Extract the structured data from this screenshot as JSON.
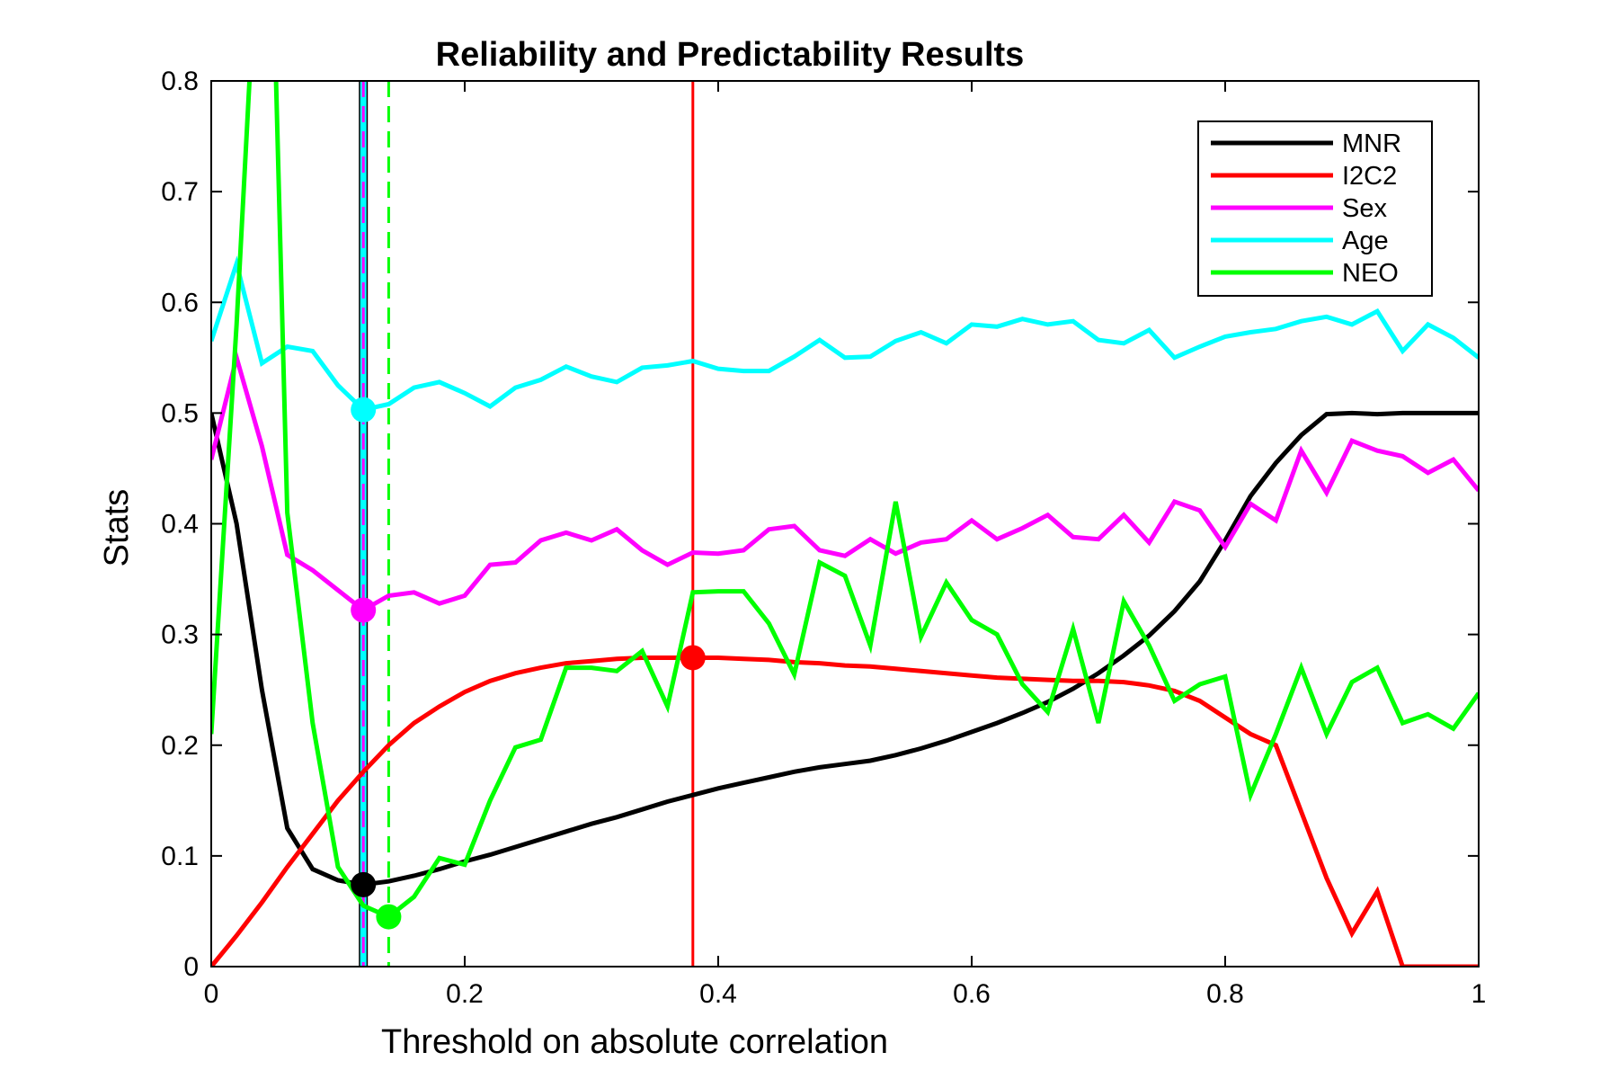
{
  "chart_data": {
    "type": "line",
    "title": "Reliability and Predictability Results",
    "xlabel": "Threshold on absolute correlation",
    "ylabel": "Stats",
    "xlim": [
      0,
      1
    ],
    "ylim": [
      0,
      0.8
    ],
    "xticks": [
      0,
      0.2,
      0.4,
      0.6,
      0.8,
      1
    ],
    "xtick_labels": [
      "0",
      "0.2",
      "0.4",
      "0.6",
      "0.8",
      "1"
    ],
    "yticks": [
      0,
      0.1,
      0.2,
      0.3,
      0.4,
      0.5,
      0.6,
      0.7,
      0.8
    ],
    "ytick_labels": [
      "0",
      "0.1",
      "0.2",
      "0.3",
      "0.4",
      "0.5",
      "0.6",
      "0.7",
      "0.8"
    ],
    "grid": false,
    "legend_position": "top-right",
    "series": [
      {
        "name": "MNR",
        "color": "#000000",
        "x": [
          0,
          0.02,
          0.04,
          0.06,
          0.08,
          0.1,
          0.12,
          0.14,
          0.16,
          0.18,
          0.2,
          0.22,
          0.24,
          0.26,
          0.28,
          0.3,
          0.32,
          0.34,
          0.36,
          0.38,
          0.4,
          0.42,
          0.44,
          0.46,
          0.48,
          0.5,
          0.52,
          0.54,
          0.56,
          0.58,
          0.6,
          0.62,
          0.64,
          0.66,
          0.68,
          0.7,
          0.72,
          0.74,
          0.76,
          0.78,
          0.8,
          0.82,
          0.84,
          0.86,
          0.88,
          0.9,
          0.92,
          0.94,
          0.96,
          0.98,
          1
        ],
        "y": [
          0.5,
          0.4,
          0.25,
          0.125,
          0.088,
          0.078,
          0.074,
          0.077,
          0.082,
          0.088,
          0.095,
          0.101,
          0.108,
          0.115,
          0.122,
          0.129,
          0.135,
          0.142,
          0.149,
          0.155,
          0.161,
          0.166,
          0.171,
          0.176,
          0.18,
          0.183,
          0.186,
          0.191,
          0.197,
          0.204,
          0.212,
          0.22,
          0.229,
          0.239,
          0.251,
          0.265,
          0.281,
          0.299,
          0.321,
          0.348,
          0.385,
          0.425,
          0.455,
          0.48,
          0.499,
          0.5,
          0.499,
          0.5,
          0.5,
          0.5,
          0.5
        ]
      },
      {
        "name": "I2C2",
        "color": "#ff0000",
        "x": [
          0,
          0.02,
          0.04,
          0.06,
          0.08,
          0.1,
          0.12,
          0.14,
          0.16,
          0.18,
          0.2,
          0.22,
          0.24,
          0.26,
          0.28,
          0.3,
          0.32,
          0.34,
          0.36,
          0.38,
          0.4,
          0.42,
          0.44,
          0.46,
          0.48,
          0.5,
          0.52,
          0.54,
          0.56,
          0.58,
          0.6,
          0.62,
          0.64,
          0.66,
          0.68,
          0.7,
          0.72,
          0.74,
          0.76,
          0.78,
          0.8,
          0.82,
          0.84,
          0.86,
          0.88,
          0.9,
          0.92,
          0.94,
          0.96,
          0.98,
          1
        ],
        "y": [
          0,
          0.028,
          0.058,
          0.09,
          0.12,
          0.15,
          0.176,
          0.2,
          0.22,
          0.235,
          0.248,
          0.258,
          0.265,
          0.27,
          0.274,
          0.276,
          0.278,
          0.279,
          0.279,
          0.279,
          0.279,
          0.278,
          0.277,
          0.275,
          0.274,
          0.272,
          0.271,
          0.269,
          0.267,
          0.265,
          0.263,
          0.261,
          0.26,
          0.259,
          0.258,
          0.258,
          0.257,
          0.254,
          0.249,
          0.24,
          0.225,
          0.21,
          0.2,
          0.14,
          0.08,
          0.03,
          0.068,
          0,
          0,
          0,
          0
        ]
      },
      {
        "name": "Sex",
        "color": "#ff00ff",
        "x": [
          0,
          0.02,
          0.04,
          0.06,
          0.08,
          0.1,
          0.12,
          0.14,
          0.16,
          0.18,
          0.2,
          0.22,
          0.24,
          0.26,
          0.28,
          0.3,
          0.32,
          0.34,
          0.36,
          0.38,
          0.4,
          0.42,
          0.44,
          0.46,
          0.48,
          0.5,
          0.52,
          0.54,
          0.56,
          0.58,
          0.6,
          0.62,
          0.64,
          0.66,
          0.68,
          0.7,
          0.72,
          0.74,
          0.76,
          0.78,
          0.8,
          0.82,
          0.84,
          0.86,
          0.88,
          0.9,
          0.92,
          0.94,
          0.96,
          0.98,
          1
        ],
        "y": [
          0.458,
          0.55,
          0.47,
          0.372,
          0.358,
          0.34,
          0.322,
          0.335,
          0.338,
          0.328,
          0.335,
          0.363,
          0.365,
          0.385,
          0.392,
          0.385,
          0.395,
          0.376,
          0.363,
          0.374,
          0.373,
          0.376,
          0.395,
          0.398,
          0.376,
          0.371,
          0.386,
          0.373,
          0.383,
          0.386,
          0.403,
          0.386,
          0.396,
          0.408,
          0.388,
          0.386,
          0.408,
          0.383,
          0.42,
          0.412,
          0.379,
          0.418,
          0.403,
          0.466,
          0.428,
          0.475,
          0.466,
          0.461,
          0.446,
          0.458,
          0.43
        ]
      },
      {
        "name": "Age",
        "color": "#00ffff",
        "x": [
          0,
          0.02,
          0.04,
          0.06,
          0.08,
          0.1,
          0.12,
          0.14,
          0.16,
          0.18,
          0.2,
          0.22,
          0.24,
          0.26,
          0.28,
          0.3,
          0.32,
          0.34,
          0.36,
          0.38,
          0.4,
          0.42,
          0.44,
          0.46,
          0.48,
          0.5,
          0.52,
          0.54,
          0.56,
          0.58,
          0.6,
          0.62,
          0.64,
          0.66,
          0.68,
          0.7,
          0.72,
          0.74,
          0.76,
          0.78,
          0.8,
          0.82,
          0.84,
          0.86,
          0.88,
          0.9,
          0.92,
          0.94,
          0.96,
          0.98,
          1
        ],
        "y": [
          0.565,
          0.635,
          0.545,
          0.56,
          0.556,
          0.525,
          0.503,
          0.508,
          0.523,
          0.528,
          0.518,
          0.506,
          0.523,
          0.53,
          0.542,
          0.533,
          0.528,
          0.541,
          0.543,
          0.547,
          0.54,
          0.538,
          0.538,
          0.551,
          0.566,
          0.55,
          0.551,
          0.565,
          0.573,
          0.563,
          0.58,
          0.578,
          0.585,
          0.58,
          0.583,
          0.566,
          0.563,
          0.575,
          0.55,
          0.56,
          0.569,
          0.573,
          0.576,
          0.583,
          0.587,
          0.58,
          0.592,
          0.556,
          0.58,
          0.568,
          0.55
        ]
      },
      {
        "name": "NEO",
        "color": "#00ff00",
        "x": [
          0,
          0.02,
          0.0325,
          0.04,
          0.05,
          0.06,
          0.08,
          0.1,
          0.12,
          0.14,
          0.16,
          0.18,
          0.2,
          0.22,
          0.24,
          0.26,
          0.28,
          0.3,
          0.32,
          0.34,
          0.36,
          0.38,
          0.4,
          0.42,
          0.44,
          0.46,
          0.48,
          0.5,
          0.52,
          0.54,
          0.56,
          0.58,
          0.6,
          0.62,
          0.64,
          0.66,
          0.68,
          0.7,
          0.72,
          0.74,
          0.76,
          0.78,
          0.8,
          0.82,
          0.84,
          0.86,
          0.88,
          0.9,
          0.92,
          0.94,
          0.96,
          0.98,
          1
        ],
        "y": [
          0.21,
          0.58,
          0.85,
          0.85,
          0.85,
          0.41,
          0.22,
          0.09,
          0.055,
          0.045,
          0.063,
          0.098,
          0.092,
          0.15,
          0.198,
          0.205,
          0.27,
          0.27,
          0.267,
          0.285,
          0.235,
          0.338,
          0.339,
          0.339,
          0.31,
          0.264,
          0.365,
          0.353,
          0.29,
          0.42,
          0.298,
          0.347,
          0.313,
          0.3,
          0.255,
          0.23,
          0.305,
          0.22,
          0.33,
          0.29,
          0.24,
          0.255,
          0.262,
          0.155,
          0.21,
          0.27,
          0.21,
          0.257,
          0.27,
          0.22,
          0.228,
          0.215,
          0.247
        ]
      }
    ],
    "vertical_lines": [
      {
        "x": 0.12,
        "color": "#000000",
        "style": "solid",
        "series": "MNR"
      },
      {
        "x": 0.12,
        "color": "#00ffff",
        "style": "solid",
        "series": "Age"
      },
      {
        "x": 0.12,
        "color": "#ff00ff",
        "style": "dashed",
        "series": "Sex"
      },
      {
        "x": 0.14,
        "color": "#00ff00",
        "style": "dashed",
        "series": "NEO"
      },
      {
        "x": 0.38,
        "color": "#ff0000",
        "style": "solid",
        "series": "I2C2"
      }
    ],
    "markers": [
      {
        "series": "MNR",
        "x": 0.12,
        "y": 0.074,
        "color": "#000000"
      },
      {
        "series": "I2C2",
        "x": 0.38,
        "y": 0.279,
        "color": "#ff0000"
      },
      {
        "series": "Sex",
        "x": 0.12,
        "y": 0.322,
        "color": "#ff00ff"
      },
      {
        "series": "Age",
        "x": 0.12,
        "y": 0.503,
        "color": "#00ffff"
      },
      {
        "series": "NEO",
        "x": 0.14,
        "y": 0.045,
        "color": "#00ff00"
      }
    ]
  }
}
